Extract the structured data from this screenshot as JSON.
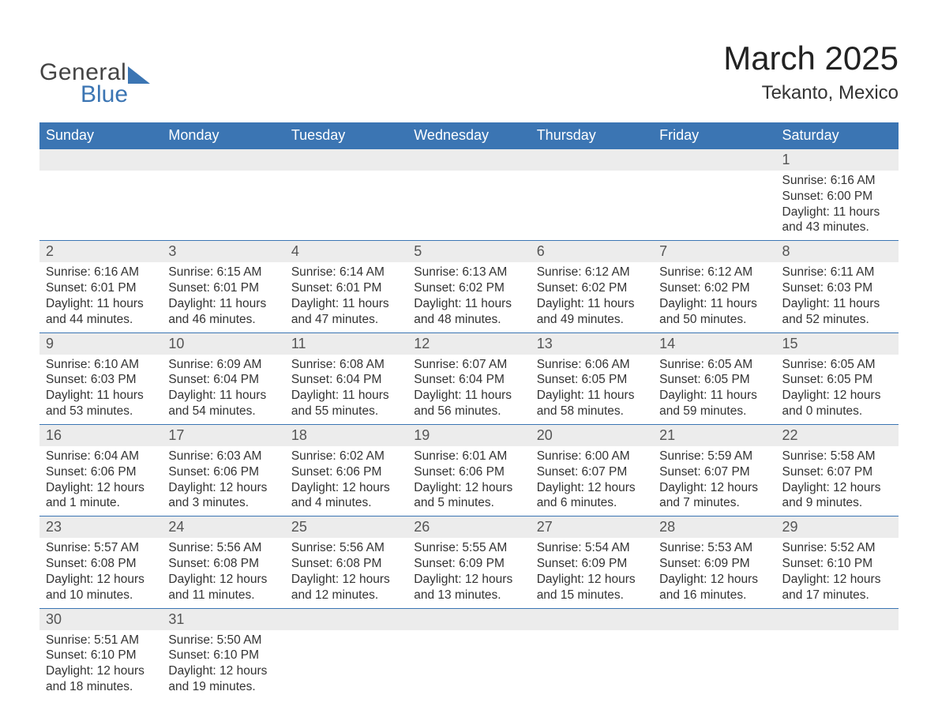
{
  "colors": {
    "header_bg": "#3b75b3",
    "header_text": "#ffffff",
    "daynum_bg": "#ececec",
    "daynum_text": "#555555",
    "body_text": "#333333",
    "rule": "#3b75b3",
    "logo_gray": "#444444",
    "logo_blue": "#3b75b3",
    "page_bg": "#ffffff"
  },
  "typography": {
    "title_fontsize": 42,
    "location_fontsize": 24,
    "header_fontsize": 18,
    "daynum_fontsize": 18,
    "details_fontsize": 15.5,
    "logo_fontsize": 30,
    "font_family": "Arial"
  },
  "logo": {
    "top": "General",
    "bottom": "Blue"
  },
  "title": "March 2025",
  "location": "Tekanto, Mexico",
  "weekday_headers": [
    "Sunday",
    "Monday",
    "Tuesday",
    "Wednesday",
    "Thursday",
    "Friday",
    "Saturday"
  ],
  "first_weekday_index": 6,
  "days": [
    {
      "n": 1,
      "sunrise": "6:16 AM",
      "sunset": "6:00 PM",
      "daylight": "11 hours and 43 minutes."
    },
    {
      "n": 2,
      "sunrise": "6:16 AM",
      "sunset": "6:01 PM",
      "daylight": "11 hours and 44 minutes."
    },
    {
      "n": 3,
      "sunrise": "6:15 AM",
      "sunset": "6:01 PM",
      "daylight": "11 hours and 46 minutes."
    },
    {
      "n": 4,
      "sunrise": "6:14 AM",
      "sunset": "6:01 PM",
      "daylight": "11 hours and 47 minutes."
    },
    {
      "n": 5,
      "sunrise": "6:13 AM",
      "sunset": "6:02 PM",
      "daylight": "11 hours and 48 minutes."
    },
    {
      "n": 6,
      "sunrise": "6:12 AM",
      "sunset": "6:02 PM",
      "daylight": "11 hours and 49 minutes."
    },
    {
      "n": 7,
      "sunrise": "6:12 AM",
      "sunset": "6:02 PM",
      "daylight": "11 hours and 50 minutes."
    },
    {
      "n": 8,
      "sunrise": "6:11 AM",
      "sunset": "6:03 PM",
      "daylight": "11 hours and 52 minutes."
    },
    {
      "n": 9,
      "sunrise": "6:10 AM",
      "sunset": "6:03 PM",
      "daylight": "11 hours and 53 minutes."
    },
    {
      "n": 10,
      "sunrise": "6:09 AM",
      "sunset": "6:04 PM",
      "daylight": "11 hours and 54 minutes."
    },
    {
      "n": 11,
      "sunrise": "6:08 AM",
      "sunset": "6:04 PM",
      "daylight": "11 hours and 55 minutes."
    },
    {
      "n": 12,
      "sunrise": "6:07 AM",
      "sunset": "6:04 PM",
      "daylight": "11 hours and 56 minutes."
    },
    {
      "n": 13,
      "sunrise": "6:06 AM",
      "sunset": "6:05 PM",
      "daylight": "11 hours and 58 minutes."
    },
    {
      "n": 14,
      "sunrise": "6:05 AM",
      "sunset": "6:05 PM",
      "daylight": "11 hours and 59 minutes."
    },
    {
      "n": 15,
      "sunrise": "6:05 AM",
      "sunset": "6:05 PM",
      "daylight": "12 hours and 0 minutes."
    },
    {
      "n": 16,
      "sunrise": "6:04 AM",
      "sunset": "6:06 PM",
      "daylight": "12 hours and 1 minute."
    },
    {
      "n": 17,
      "sunrise": "6:03 AM",
      "sunset": "6:06 PM",
      "daylight": "12 hours and 3 minutes."
    },
    {
      "n": 18,
      "sunrise": "6:02 AM",
      "sunset": "6:06 PM",
      "daylight": "12 hours and 4 minutes."
    },
    {
      "n": 19,
      "sunrise": "6:01 AM",
      "sunset": "6:06 PM",
      "daylight": "12 hours and 5 minutes."
    },
    {
      "n": 20,
      "sunrise": "6:00 AM",
      "sunset": "6:07 PM",
      "daylight": "12 hours and 6 minutes."
    },
    {
      "n": 21,
      "sunrise": "5:59 AM",
      "sunset": "6:07 PM",
      "daylight": "12 hours and 7 minutes."
    },
    {
      "n": 22,
      "sunrise": "5:58 AM",
      "sunset": "6:07 PM",
      "daylight": "12 hours and 9 minutes."
    },
    {
      "n": 23,
      "sunrise": "5:57 AM",
      "sunset": "6:08 PM",
      "daylight": "12 hours and 10 minutes."
    },
    {
      "n": 24,
      "sunrise": "5:56 AM",
      "sunset": "6:08 PM",
      "daylight": "12 hours and 11 minutes."
    },
    {
      "n": 25,
      "sunrise": "5:56 AM",
      "sunset": "6:08 PM",
      "daylight": "12 hours and 12 minutes."
    },
    {
      "n": 26,
      "sunrise": "5:55 AM",
      "sunset": "6:09 PM",
      "daylight": "12 hours and 13 minutes."
    },
    {
      "n": 27,
      "sunrise": "5:54 AM",
      "sunset": "6:09 PM",
      "daylight": "12 hours and 15 minutes."
    },
    {
      "n": 28,
      "sunrise": "5:53 AM",
      "sunset": "6:09 PM",
      "daylight": "12 hours and 16 minutes."
    },
    {
      "n": 29,
      "sunrise": "5:52 AM",
      "sunset": "6:10 PM",
      "daylight": "12 hours and 17 minutes."
    },
    {
      "n": 30,
      "sunrise": "5:51 AM",
      "sunset": "6:10 PM",
      "daylight": "12 hours and 18 minutes."
    },
    {
      "n": 31,
      "sunrise": "5:50 AM",
      "sunset": "6:10 PM",
      "daylight": "12 hours and 19 minutes."
    }
  ],
  "labels": {
    "sunrise": "Sunrise",
    "sunset": "Sunset",
    "daylight": "Daylight"
  }
}
